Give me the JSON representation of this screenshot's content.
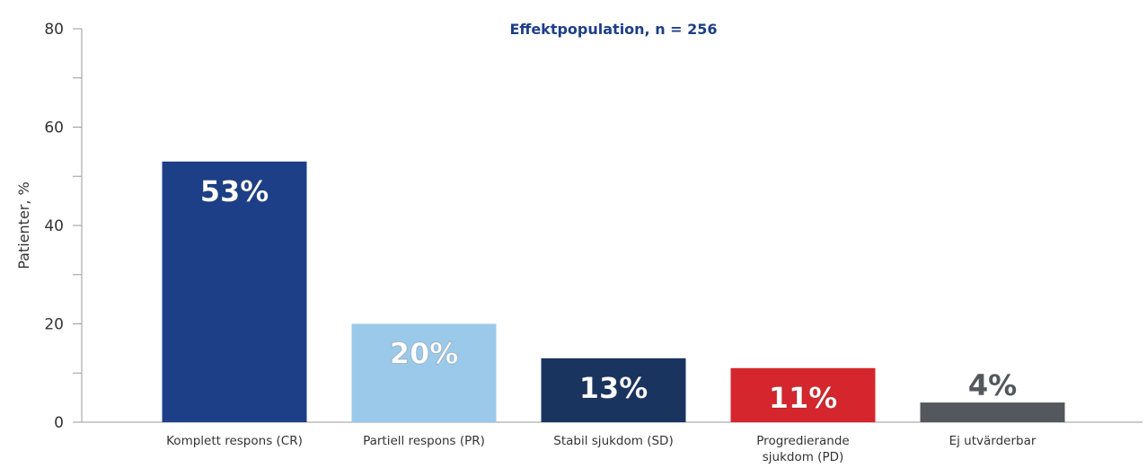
{
  "chart_data": {
    "type": "bar",
    "title": "Effektpopulation, n = 256",
    "ylabel": "Patienter, %",
    "xlabel": "",
    "ylim": [
      0,
      80
    ],
    "yticks": [
      0,
      20,
      40,
      60,
      80
    ],
    "grid": false,
    "categories": [
      [
        "Komplett respons (CR)"
      ],
      [
        "Partiell respons (PR)"
      ],
      [
        "Stabil sjukdom (SD)"
      ],
      [
        "Progredierande",
        "sjukdom (PD)"
      ],
      [
        "Ej utvärderbar"
      ]
    ],
    "values": [
      53,
      20,
      13,
      11,
      4
    ],
    "data_labels": [
      "53%",
      "20%",
      "13%",
      "11%",
      "4%"
    ],
    "colors": [
      "#1d3f87",
      "#9bc9ea",
      "#1a3460",
      "#d5262d",
      "#54575b"
    ],
    "title_color": "#1d3f87",
    "label_colors": [
      "#ffffff",
      "#ffffff",
      "#ffffff",
      "#ffffff",
      "#54575b"
    ]
  }
}
